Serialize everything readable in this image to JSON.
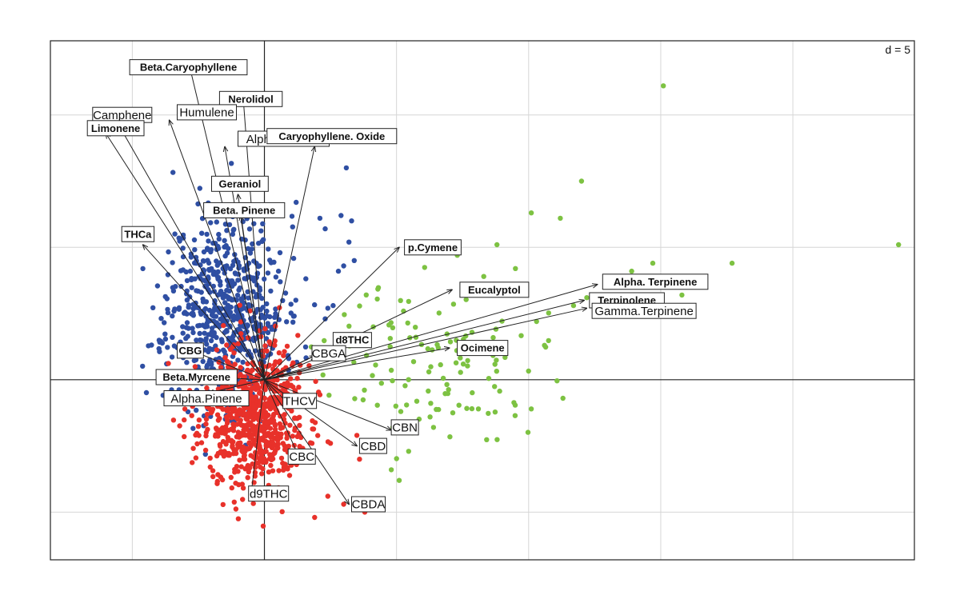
{
  "chart_data": {
    "type": "scatter",
    "subtype": "pca-biplot",
    "annotation": "d = 5",
    "grid": true,
    "grid_spacing": 5,
    "xlim": [
      -8.1,
      24.6
    ],
    "ylim": [
      -6.8,
      12.8
    ],
    "colors": {
      "blue": "#2f4fa3",
      "red": "#e8312a",
      "green": "#7dc242"
    },
    "outlier_points": {
      "blue": [
        [
          3.1,
          8.0
        ],
        [
          2.1,
          6.1
        ],
        [
          2.9,
          6.2
        ],
        [
          3.3,
          6.0
        ],
        [
          2.3,
          5.7
        ],
        [
          3.0,
          4.3
        ],
        [
          3.4,
          4.5
        ],
        [
          2.8,
          4.1
        ],
        [
          3.2,
          5.2
        ],
        [
          1.2,
          6.7
        ],
        [
          2.4,
          2.7
        ],
        [
          2.6,
          2.8
        ],
        [
          2.3,
          2.3
        ],
        [
          0.6,
          3.7
        ],
        [
          1.1,
          2.4
        ]
      ],
      "red": [
        [
          1.8,
          -2.4
        ],
        [
          2.5,
          -2.4
        ],
        [
          3.5,
          -2.1
        ],
        [
          3.8,
          -5.0
        ],
        [
          3.0,
          -4.7
        ],
        [
          1.9,
          -5.2
        ],
        [
          3.6,
          -3.0
        ],
        [
          2.4,
          -4.4
        ]
      ],
      "green": [
        [
          15.1,
          11.1
        ],
        [
          24.0,
          5.1
        ],
        [
          12.0,
          7.5
        ],
        [
          11.2,
          6.1
        ],
        [
          14.7,
          4.4
        ],
        [
          17.7,
          4.4
        ],
        [
          9.4,
          3.5
        ],
        [
          11.7,
          2.8
        ],
        [
          10.1,
          6.3
        ],
        [
          8.8,
          5.1
        ],
        [
          7.3,
          4.7
        ],
        [
          12.2,
          3.1
        ],
        [
          10.6,
          1.3
        ],
        [
          10.1,
          -1.1
        ],
        [
          11.3,
          -0.7
        ],
        [
          4.8,
          -3.4
        ],
        [
          5.1,
          -3.8
        ],
        [
          8.1,
          -1.1
        ],
        [
          6.4,
          -1.8
        ],
        [
          9.5,
          4.2
        ],
        [
          15.8,
          3.2
        ],
        [
          13.9,
          4.1
        ],
        [
          10.3,
          2.2
        ],
        [
          8.3,
          3.9
        ]
      ]
    },
    "loadings": [
      {
        "label": "Beta.Caryophyllene",
        "tip": [
          -2.8,
          11.7
        ],
        "box": [
          -5.1,
          11.8
        ],
        "bold": true
      },
      {
        "label": "Nerolidol",
        "tip": [
          -0.8,
          10.6
        ],
        "box": [
          -1.7,
          10.6
        ],
        "bold": true
      },
      {
        "label": "Camphene",
        "tip": [
          -5.5,
          9.6
        ],
        "box": [
          -6.5,
          10.0
        ],
        "bold": false
      },
      {
        "label": "Humulene",
        "tip": [
          -3.6,
          9.8
        ],
        "box": [
          -3.3,
          10.1
        ],
        "bold": false
      },
      {
        "label": "Limonene",
        "tip": [
          -6.0,
          9.3
        ],
        "box": [
          -6.7,
          9.5
        ],
        "bold": true
      },
      {
        "label": "Alpha. Pinene",
        "tip": [
          -1.5,
          8.8
        ],
        "box": [
          -1.0,
          9.1
        ],
        "bold": false
      },
      {
        "label": "Caryophyllene. Oxide",
        "tip": [
          1.9,
          8.8
        ],
        "box": [
          0.1,
          9.2
        ],
        "bold": true
      },
      {
        "label": "Geraniol",
        "tip": [
          -1.0,
          7.0
        ],
        "box": [
          -2.0,
          7.4
        ],
        "bold": true
      },
      {
        "label": "Beta. Pinene",
        "tip": [
          -0.9,
          6.2
        ],
        "box": [
          -2.3,
          6.4
        ],
        "bold": true
      },
      {
        "label": "THCa",
        "tip": [
          -4.6,
          5.1
        ],
        "box": [
          -5.4,
          5.5
        ],
        "bold": true
      },
      {
        "label": "p.Cymene",
        "tip": [
          5.1,
          5.0
        ],
        "box": [
          5.3,
          5.0
        ],
        "bold": true
      },
      {
        "label": "Eucalyptol",
        "tip": [
          7.1,
          3.4
        ],
        "box": [
          7.4,
          3.4
        ],
        "bold": true
      },
      {
        "label": "Alpha. Terpinene",
        "tip": [
          12.6,
          3.6
        ],
        "box": [
          12.8,
          3.7
        ],
        "bold": true
      },
      {
        "label": "Terpinolene",
        "tip": [
          12.1,
          3.0
        ],
        "box": [
          12.3,
          3.0
        ],
        "bold": true
      },
      {
        "label": "Gamma.Terpinene",
        "tip": [
          12.2,
          2.7
        ],
        "box": [
          12.4,
          2.6
        ],
        "bold": false
      },
      {
        "label": "Ocimene",
        "tip": [
          7.0,
          1.2
        ],
        "box": [
          7.3,
          1.2
        ],
        "bold": true
      },
      {
        "label": "d8THC",
        "tip": [
          2.7,
          1.1
        ],
        "box": [
          2.6,
          1.5
        ],
        "bold": true
      },
      {
        "label": "CBGA",
        "tip": [
          1.9,
          0.9
        ],
        "box": [
          1.8,
          1.0
        ],
        "bold": false
      },
      {
        "label": "THCV",
        "tip": [
          0.9,
          -0.9
        ],
        "box": [
          0.7,
          -0.8
        ],
        "bold": false
      },
      {
        "label": "CBN",
        "tip": [
          4.8,
          -1.9
        ],
        "box": [
          4.8,
          -1.8
        ],
        "bold": false
      },
      {
        "label": "CBD",
        "tip": [
          3.5,
          -2.5
        ],
        "box": [
          3.6,
          -2.5
        ],
        "bold": false
      },
      {
        "label": "CBC",
        "tip": [
          1.3,
          -2.9
        ],
        "box": [
          0.9,
          -2.9
        ],
        "bold": false
      },
      {
        "label": "CBDA",
        "tip": [
          3.2,
          -4.7
        ],
        "box": [
          3.3,
          -4.7
        ],
        "bold": false
      },
      {
        "label": "d9THC",
        "tip": [
          -0.5,
          -4.3
        ],
        "box": [
          -0.6,
          -4.3
        ],
        "bold": false
      },
      {
        "label": "CBG",
        "tip": [
          -2.5,
          1.0
        ],
        "box": [
          -3.3,
          1.1
        ],
        "bold": true
      },
      {
        "label": "Beta.Myrcene",
        "tip": [
          -2.1,
          0.1
        ],
        "box": [
          -4.1,
          0.1
        ],
        "bold": true
      },
      {
        "label": "Alpha.Pinene",
        "tip": [
          -2.1,
          -0.5
        ],
        "box": [
          -3.8,
          -0.7
        ],
        "bold": false
      }
    ],
    "clusters": [
      {
        "color": "blue",
        "cx": -1.5,
        "cy": 2.6,
        "sx": 1.1,
        "sy": 1.8,
        "n": 650,
        "seed": 11
      },
      {
        "color": "red",
        "cx": -0.5,
        "cy": -1.4,
        "sx": 1.0,
        "sy": 1.3,
        "n": 750,
        "seed": 23
      },
      {
        "color": "green",
        "cx": 6.5,
        "cy": 0.6,
        "sx": 2.0,
        "sy": 1.5,
        "n": 120,
        "seed": 37
      }
    ]
  }
}
